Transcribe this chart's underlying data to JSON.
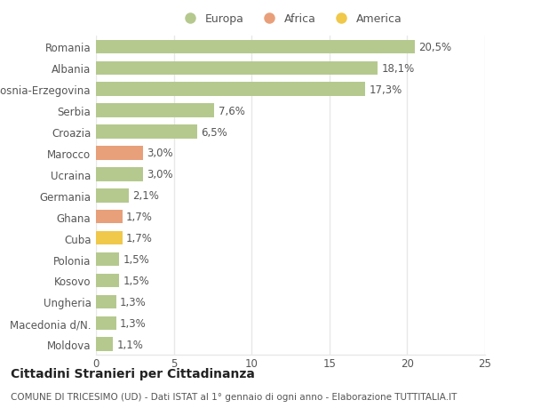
{
  "countries": [
    "Romania",
    "Albania",
    "Bosnia-Erzegovina",
    "Serbia",
    "Croazia",
    "Marocco",
    "Ucraina",
    "Germania",
    "Ghana",
    "Cuba",
    "Polonia",
    "Kosovo",
    "Ungheria",
    "Macedonia d/N.",
    "Moldova"
  ],
  "values": [
    20.5,
    18.1,
    17.3,
    7.6,
    6.5,
    3.0,
    3.0,
    2.1,
    1.7,
    1.7,
    1.5,
    1.5,
    1.3,
    1.3,
    1.1
  ],
  "labels": [
    "20,5%",
    "18,1%",
    "17,3%",
    "7,6%",
    "6,5%",
    "3,0%",
    "3,0%",
    "2,1%",
    "1,7%",
    "1,7%",
    "1,5%",
    "1,5%",
    "1,3%",
    "1,3%",
    "1,1%"
  ],
  "continents": [
    "Europa",
    "Europa",
    "Europa",
    "Europa",
    "Europa",
    "Africa",
    "Europa",
    "Europa",
    "Africa",
    "America",
    "Europa",
    "Europa",
    "Europa",
    "Europa",
    "Europa"
  ],
  "colors": {
    "Europa": "#b5c98e",
    "Africa": "#e8a07a",
    "America": "#f0c84a"
  },
  "xlim": [
    0,
    25
  ],
  "xticks": [
    0,
    5,
    10,
    15,
    20,
    25
  ],
  "title": "Cittadini Stranieri per Cittadinanza",
  "subtitle": "COMUNE DI TRICESIMO (UD) - Dati ISTAT al 1° gennaio di ogni anno - Elaborazione TUTTITALIA.IT",
  "background_color": "#ffffff",
  "grid_color": "#e8e8e8",
  "bar_height": 0.65,
  "label_fontsize": 8.5,
  "tick_fontsize": 8.5,
  "title_fontsize": 10,
  "subtitle_fontsize": 7.5,
  "legend_fontsize": 9
}
